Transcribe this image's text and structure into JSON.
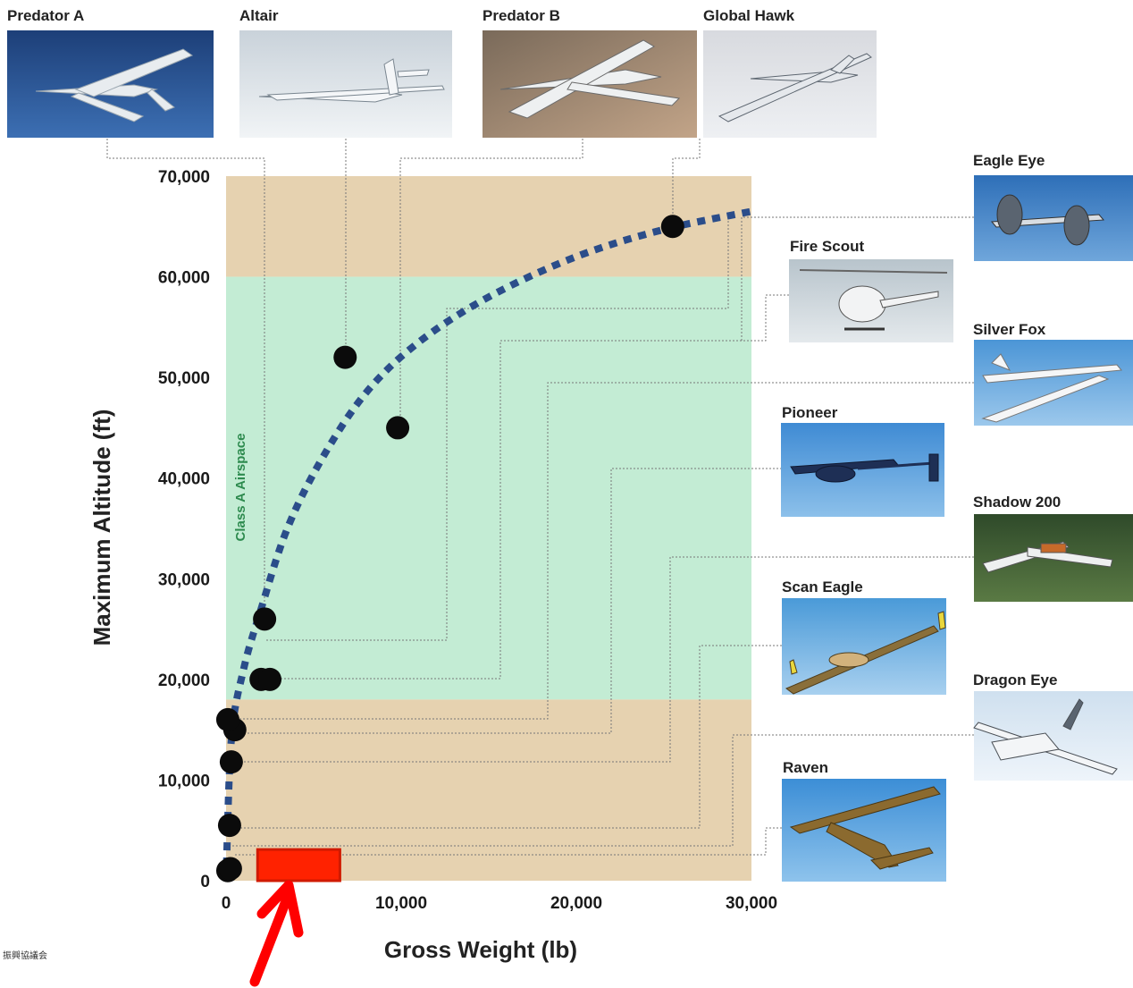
{
  "chart_data": {
    "type": "scatter",
    "xlabel": "Gross Weight (lb)",
    "ylabel": "Maximum Altitude (ft)",
    "xlim": [
      0,
      30000
    ],
    "ylim": [
      0,
      70000
    ],
    "x_ticks": [
      0,
      10000,
      20000,
      30000
    ],
    "x_tick_labels": [
      "0",
      "10,000",
      "20,000",
      "30,000"
    ],
    "y_ticks": [
      0,
      10000,
      20000,
      30000,
      40000,
      50000,
      60000,
      70000
    ],
    "y_tick_labels": [
      "0",
      "10,000",
      "20,000",
      "30,000",
      "40,000",
      "50,000",
      "60,000",
      "70,000"
    ],
    "grid": false,
    "zones": [
      {
        "label": "",
        "y_range": [
          60000,
          70000
        ],
        "color": "#e6d2b0"
      },
      {
        "label": "Class A Airspace",
        "y_range": [
          18000,
          60000
        ],
        "color": "#c3ecd4"
      },
      {
        "label": "",
        "y_range": [
          0,
          18000
        ],
        "color": "#e6d2b0"
      }
    ],
    "points": [
      {
        "x": 100,
        "y": 1000
      },
      {
        "x": 250,
        "y": 1200
      },
      {
        "x": 200,
        "y": 5500
      },
      {
        "x": 300,
        "y": 11800
      },
      {
        "x": 500,
        "y": 15000
      },
      {
        "x": 100,
        "y": 16000
      },
      {
        "x": 2000,
        "y": 20000
      },
      {
        "x": 2500,
        "y": 20000
      },
      {
        "x": 2200,
        "y": 26000
      },
      {
        "x": 6800,
        "y": 52000
      },
      {
        "x": 9800,
        "y": 45000
      },
      {
        "x": 25500,
        "y": 65000
      }
    ],
    "trend_curve": [
      [
        0,
        0
      ],
      [
        300,
        14000
      ],
      [
        1000,
        21000
      ],
      [
        2000,
        27000
      ],
      [
        3500,
        35000
      ],
      [
        5500,
        42000
      ],
      [
        8000,
        48500
      ],
      [
        11000,
        53500
      ],
      [
        15000,
        58000
      ],
      [
        20000,
        62000
      ],
      [
        25000,
        64700
      ],
      [
        30000,
        66500
      ]
    ],
    "trend_color": "#2b4d8a",
    "highlight_box": {
      "x_range": [
        1800,
        6500
      ],
      "y_range": [
        0,
        3100
      ],
      "color": "#ff2200"
    },
    "arrow_color": "#ff0000",
    "uavs": [
      {
        "name": "Predator A"
      },
      {
        "name": "Altair"
      },
      {
        "name": "Predator B"
      },
      {
        "name": "Global Hawk"
      },
      {
        "name": "Eagle Eye"
      },
      {
        "name": "Fire Scout"
      },
      {
        "name": "Silver Fox"
      },
      {
        "name": "Pioneer"
      },
      {
        "name": "Shadow 200"
      },
      {
        "name": "Scan Eagle"
      },
      {
        "name": "Dragon Eye"
      },
      {
        "name": "Raven"
      }
    ],
    "source": "振興協議会"
  }
}
